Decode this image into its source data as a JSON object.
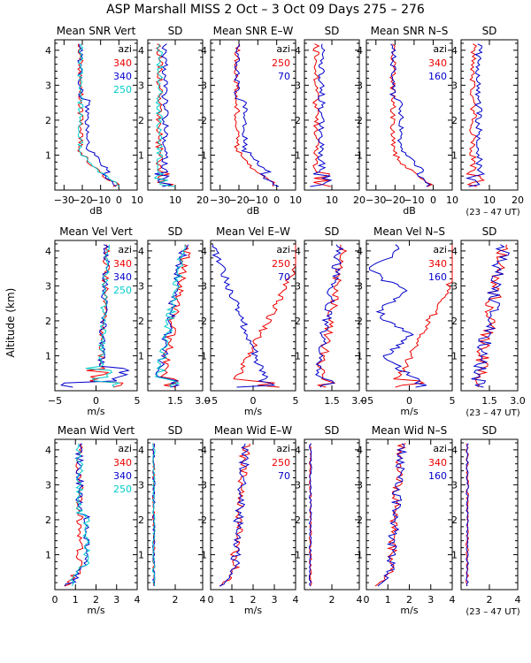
{
  "title": "ASP Marshall MISS   2 Oct –  3 Oct 09 Days 275 – 276",
  "ylabel": "Altitude (km)",
  "ut_note": "(23 – 47 UT)",
  "legend_header": "azi",
  "colors": {
    "red": "#ee0000",
    "blue": "#0000cc",
    "cyan": "#00cccc",
    "axis": "#000000"
  },
  "y_axis": {
    "range": [
      0,
      4.3
    ],
    "ticks": [
      "1",
      "2",
      "3",
      "4"
    ]
  },
  "chart_data": [
    {
      "type": "line",
      "row": 0,
      "panels": [
        {
          "title": "Mean SNR Vert",
          "xlabel": "dB",
          "xlim": [
            -35,
            10
          ],
          "ticks": [
            -30,
            -20,
            -10,
            0,
            10
          ],
          "tick_labels": [
            "−30",
            "−20",
            "−10",
            "0",
            "10"
          ],
          "profile": "snr",
          "legend": [
            {
              "label": "340",
              "color": "#ee0000"
            },
            {
              "label": "340",
              "color": "#0000cc"
            },
            {
              "label": "250",
              "color": "#00cccc"
            }
          ],
          "series": [
            {
              "name": "340",
              "color": "#ee0000"
            },
            {
              "name": "340",
              "color": "#0000cc"
            },
            {
              "name": "250",
              "color": "#00cccc"
            }
          ]
        },
        {
          "title": "SD",
          "xlabel": "",
          "xlim": [
            0,
            20
          ],
          "ticks": [
            0,
            10,
            20
          ],
          "tick_labels": [
            "",
            "10",
            "20"
          ],
          "profile": "sdsnr",
          "series": [
            {
              "name": "340",
              "color": "#ee0000"
            },
            {
              "name": "340",
              "color": "#0000cc"
            },
            {
              "name": "250",
              "color": "#00cccc"
            }
          ]
        },
        {
          "title": "Mean SNR E–W",
          "xlabel": "dB",
          "xlim": [
            -35,
            10
          ],
          "ticks": [
            -30,
            -20,
            -10,
            0,
            10
          ],
          "tick_labels": [
            "−30",
            "−20",
            "−10",
            "0",
            "10"
          ],
          "profile": "snr",
          "legend": [
            {
              "label": "250",
              "color": "#ee0000"
            },
            {
              "label": "70",
              "color": "#0000cc"
            }
          ],
          "series": [
            {
              "name": "250",
              "color": "#ee0000"
            },
            {
              "name": "70",
              "color": "#0000cc"
            }
          ]
        },
        {
          "title": "SD",
          "xlabel": "",
          "xlim": [
            0,
            20
          ],
          "ticks": [
            0,
            10,
            20
          ],
          "tick_labels": [
            "",
            "10",
            "20"
          ],
          "profile": "sdsnr",
          "series": [
            {
              "name": "250",
              "color": "#ee0000"
            },
            {
              "name": "70",
              "color": "#0000cc"
            }
          ]
        },
        {
          "title": "Mean SNR N–S",
          "xlabel": "dB",
          "xlim": [
            -35,
            10
          ],
          "ticks": [
            -30,
            -20,
            -10,
            0,
            10
          ],
          "tick_labels": [
            "−30",
            "−20",
            "−10",
            "0",
            "10"
          ],
          "profile": "snr",
          "legend": [
            {
              "label": "340",
              "color": "#ee0000"
            },
            {
              "label": "160",
              "color": "#0000cc"
            }
          ],
          "series": [
            {
              "name": "340",
              "color": "#ee0000"
            },
            {
              "name": "160",
              "color": "#0000cc"
            }
          ]
        },
        {
          "title": "SD",
          "xlabel": "",
          "xlim": [
            0,
            20
          ],
          "ticks": [
            0,
            10,
            20
          ],
          "tick_labels": [
            "",
            "10",
            "20"
          ],
          "profile": "sdsnr",
          "series": [
            {
              "name": "340",
              "color": "#ee0000"
            },
            {
              "name": "160",
              "color": "#0000cc"
            }
          ]
        }
      ]
    },
    {
      "type": "line",
      "row": 1,
      "panels": [
        {
          "title": "Mean Vel Vert",
          "xlabel": "m/s",
          "xlim": [
            -5,
            5
          ],
          "ticks": [
            -5,
            0,
            5
          ],
          "tick_labels": [
            "−5",
            "0",
            "5"
          ],
          "profile": "velvert",
          "legend": [
            {
              "label": "340",
              "color": "#ee0000"
            },
            {
              "label": "340",
              "color": "#0000cc"
            },
            {
              "label": "250",
              "color": "#00cccc"
            }
          ],
          "series": [
            {
              "name": "340",
              "color": "#ee0000"
            },
            {
              "name": "340",
              "color": "#0000cc"
            },
            {
              "name": "250",
              "color": "#00cccc"
            }
          ]
        },
        {
          "title": "SD",
          "xlabel": "",
          "xlim": [
            0,
            3
          ],
          "ticks": [
            0,
            1.5,
            3
          ],
          "tick_labels": [
            "",
            "1.5",
            "3.0"
          ],
          "profile": "sdvel",
          "series": [
            {
              "name": "340",
              "color": "#ee0000"
            },
            {
              "name": "340",
              "color": "#0000cc"
            },
            {
              "name": "250",
              "color": "#00cccc"
            }
          ]
        },
        {
          "title": "Mean Vel E–W",
          "xlabel": "m/s",
          "xlim": [
            -5,
            5
          ],
          "ticks": [
            -5,
            0,
            5
          ],
          "tick_labels": [
            "−5",
            "0",
            "5"
          ],
          "profile": "velew",
          "legend": [
            {
              "label": "250",
              "color": "#ee0000"
            },
            {
              "label": "70",
              "color": "#0000cc"
            }
          ],
          "series": [
            {
              "name": "250",
              "color": "#ee0000"
            },
            {
              "name": "70",
              "color": "#0000cc"
            }
          ]
        },
        {
          "title": "SD",
          "xlabel": "",
          "xlim": [
            0,
            3
          ],
          "ticks": [
            0,
            1.5,
            3
          ],
          "tick_labels": [
            "",
            "1.5",
            "3.0"
          ],
          "profile": "sdvel",
          "series": [
            {
              "name": "250",
              "color": "#ee0000"
            },
            {
              "name": "70",
              "color": "#0000cc"
            }
          ]
        },
        {
          "title": "Mean Vel N–S",
          "xlabel": "m/s",
          "xlim": [
            -5,
            5
          ],
          "ticks": [
            -5,
            0,
            5
          ],
          "tick_labels": [
            "−5",
            "0",
            "5"
          ],
          "profile": "velns",
          "legend": [
            {
              "label": "340",
              "color": "#ee0000"
            },
            {
              "label": "160",
              "color": "#0000cc"
            }
          ],
          "series": [
            {
              "name": "340",
              "color": "#ee0000"
            },
            {
              "name": "160",
              "color": "#0000cc"
            }
          ]
        },
        {
          "title": "SD",
          "xlabel": "",
          "xlim": [
            0,
            3
          ],
          "ticks": [
            0,
            1.5,
            3
          ],
          "tick_labels": [
            "",
            "1.5",
            "3.0"
          ],
          "profile": "sdvelns",
          "series": [
            {
              "name": "340",
              "color": "#ee0000"
            },
            {
              "name": "160",
              "color": "#0000cc"
            }
          ]
        }
      ]
    },
    {
      "type": "line",
      "row": 2,
      "panels": [
        {
          "title": "Mean Wid Vert",
          "xlabel": "m/s",
          "xlim": [
            0,
            4
          ],
          "ticks": [
            0,
            1,
            2,
            3,
            4
          ],
          "tick_labels": [
            "0",
            "1",
            "2",
            "3",
            "4"
          ],
          "profile": "widvert",
          "legend": [
            {
              "label": "340",
              "color": "#ee0000"
            },
            {
              "label": "340",
              "color": "#0000cc"
            },
            {
              "label": "250",
              "color": "#00cccc"
            }
          ],
          "series": [
            {
              "name": "340",
              "color": "#ee0000"
            },
            {
              "name": "340",
              "color": "#0000cc"
            },
            {
              "name": "250",
              "color": "#00cccc"
            }
          ]
        },
        {
          "title": "SD",
          "xlabel": "",
          "xlim": [
            0,
            4
          ],
          "ticks": [
            0,
            2,
            4
          ],
          "tick_labels": [
            "",
            "2",
            "4"
          ],
          "profile": "sdwid",
          "series": [
            {
              "name": "340",
              "color": "#ee0000"
            },
            {
              "name": "340",
              "color": "#0000cc"
            },
            {
              "name": "250",
              "color": "#00cccc"
            }
          ]
        },
        {
          "title": "Mean Wid E–W",
          "xlabel": "m/s",
          "xlim": [
            0,
            4
          ],
          "ticks": [
            0,
            1,
            2,
            3,
            4
          ],
          "tick_labels": [
            "0",
            "1",
            "2",
            "3",
            "4"
          ],
          "profile": "widew",
          "legend": [
            {
              "label": "250",
              "color": "#ee0000"
            },
            {
              "label": "70",
              "color": "#0000cc"
            }
          ],
          "series": [
            {
              "name": "250",
              "color": "#ee0000"
            },
            {
              "name": "70",
              "color": "#0000cc"
            }
          ]
        },
        {
          "title": "SD",
          "xlabel": "",
          "xlim": [
            0,
            4
          ],
          "ticks": [
            0,
            2,
            4
          ],
          "tick_labels": [
            "",
            "2",
            "4"
          ],
          "profile": "sdwid",
          "series": [
            {
              "name": "250",
              "color": "#ee0000"
            },
            {
              "name": "70",
              "color": "#0000cc"
            }
          ]
        },
        {
          "title": "Mean Wid N–S",
          "xlabel": "m/s",
          "xlim": [
            0,
            4
          ],
          "ticks": [
            0,
            1,
            2,
            3,
            4
          ],
          "tick_labels": [
            "0",
            "1",
            "2",
            "3",
            "4"
          ],
          "profile": "widns",
          "legend": [
            {
              "label": "340",
              "color": "#ee0000"
            },
            {
              "label": "160",
              "color": "#0000cc"
            }
          ],
          "series": [
            {
              "name": "340",
              "color": "#ee0000"
            },
            {
              "name": "160",
              "color": "#0000cc"
            }
          ]
        },
        {
          "title": "SD",
          "xlabel": "",
          "xlim": [
            0,
            4
          ],
          "ticks": [
            0,
            2,
            4
          ],
          "tick_labels": [
            "",
            "2",
            "4"
          ],
          "profile": "sdwid",
          "series": [
            {
              "name": "340",
              "color": "#ee0000"
            },
            {
              "name": "160",
              "color": "#0000cc"
            }
          ]
        }
      ]
    }
  ]
}
